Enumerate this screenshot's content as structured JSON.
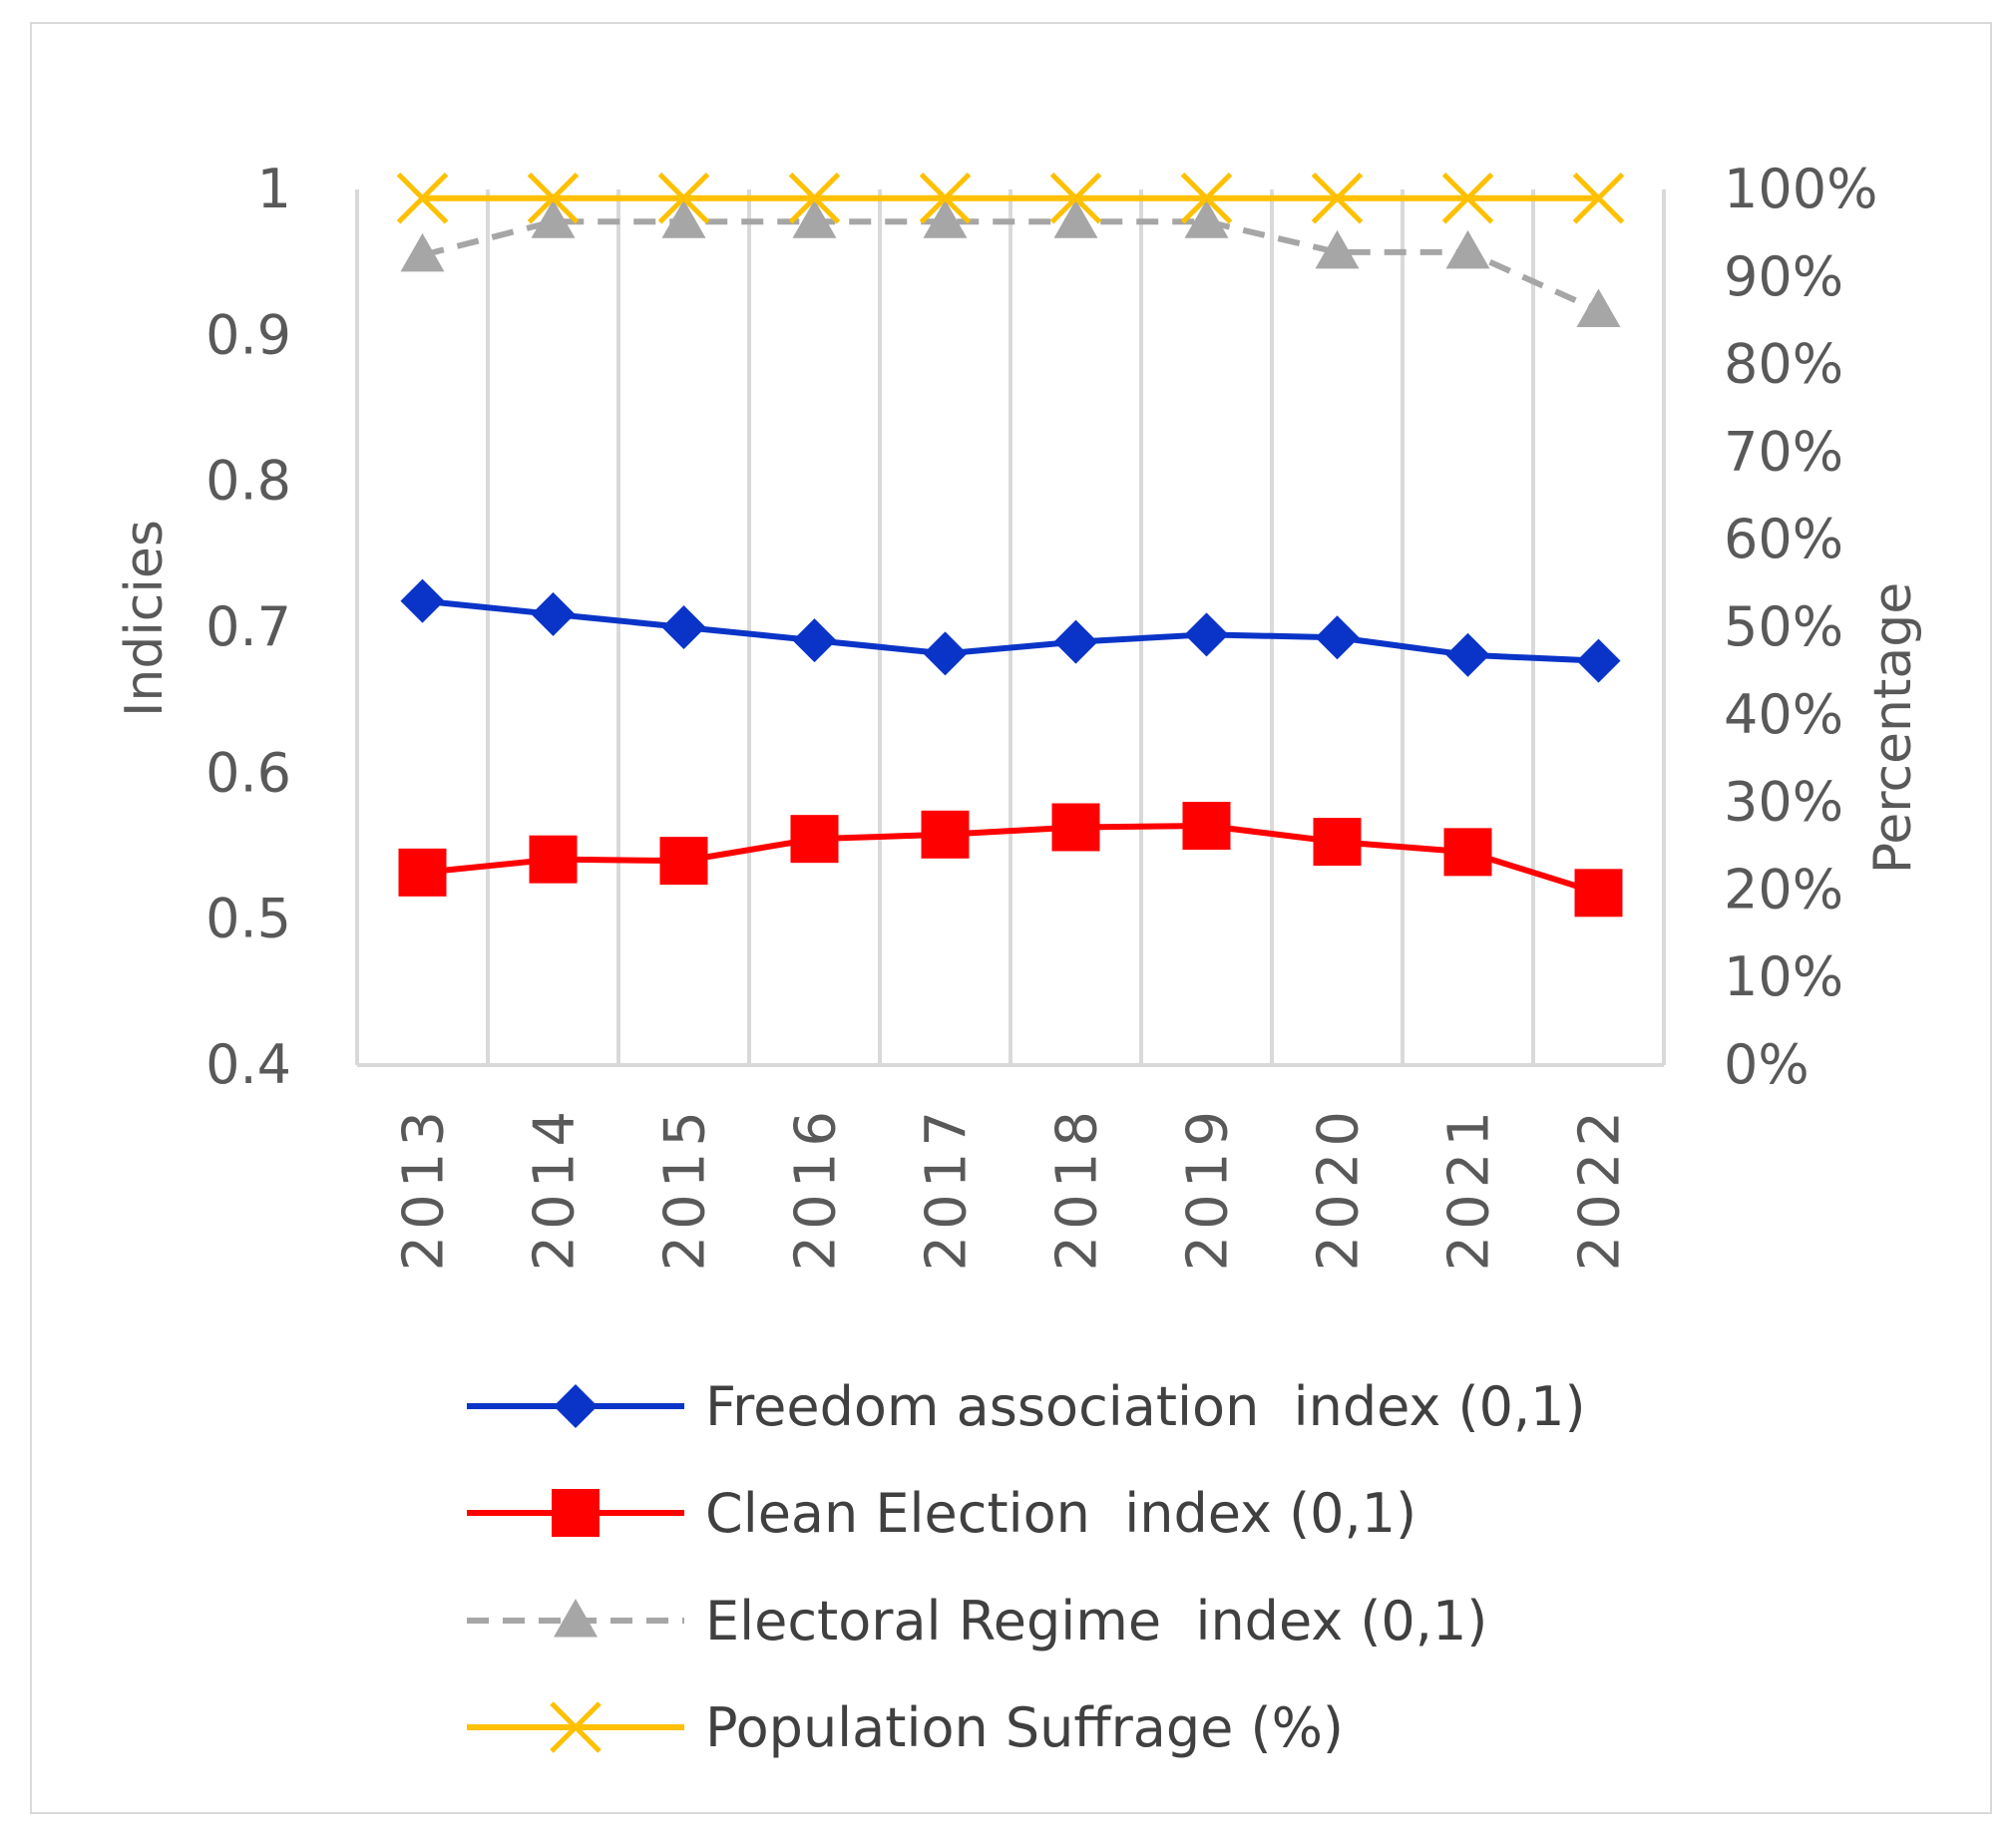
{
  "chart_data": {
    "type": "line",
    "title": "",
    "categories": [
      "2013",
      "2014",
      "2015",
      "2016",
      "2017",
      "2018",
      "2019",
      "2020",
      "2021",
      "2022"
    ],
    "xlabel": "",
    "ylabel": "Indicies",
    "ylim": [
      0.4,
      1
    ],
    "yticks": [
      "0.4",
      "0.5",
      "0.6",
      "0.7",
      "0.8",
      "0.9",
      "1"
    ],
    "y2label": "Percentage",
    "y2lim": [
      0,
      100
    ],
    "y2ticks": [
      "0%",
      "10%",
      "20%",
      "30%",
      "40%",
      "50%",
      "60%",
      "70%",
      "80%",
      "90%",
      "100%"
    ],
    "grid": "vertical",
    "legend_position": "bottom",
    "series": [
      {
        "name": "Freedom association  index (0,1)",
        "axis": "left",
        "color": "#0a34c8",
        "marker": "diamond",
        "dash": "solid",
        "values": [
          0.718,
          0.709,
          0.7,
          0.691,
          0.682,
          0.69,
          0.695,
          0.693,
          0.681,
          0.677
        ]
      },
      {
        "name": "Clean Election  index (0,1)",
        "axis": "left",
        "color": "#ff0000",
        "marker": "square",
        "dash": "solid",
        "values": [
          0.532,
          0.541,
          0.54,
          0.555,
          0.558,
          0.563,
          0.564,
          0.553,
          0.546,
          0.518
        ]
      },
      {
        "name": "Electoral Regime  index (0,1)",
        "axis": "left",
        "color": "#a6a6a6",
        "marker": "triangle",
        "dash": "dashed",
        "values": [
          0.955,
          0.978,
          0.978,
          0.978,
          0.978,
          0.978,
          0.978,
          0.957,
          0.957,
          0.917
        ]
      },
      {
        "name": "Population Suffrage (%)",
        "axis": "right",
        "color": "#ffc000",
        "marker": "x",
        "dash": "solid",
        "values": [
          99,
          99,
          99,
          99,
          99,
          99,
          99,
          99,
          99,
          99
        ]
      }
    ]
  }
}
